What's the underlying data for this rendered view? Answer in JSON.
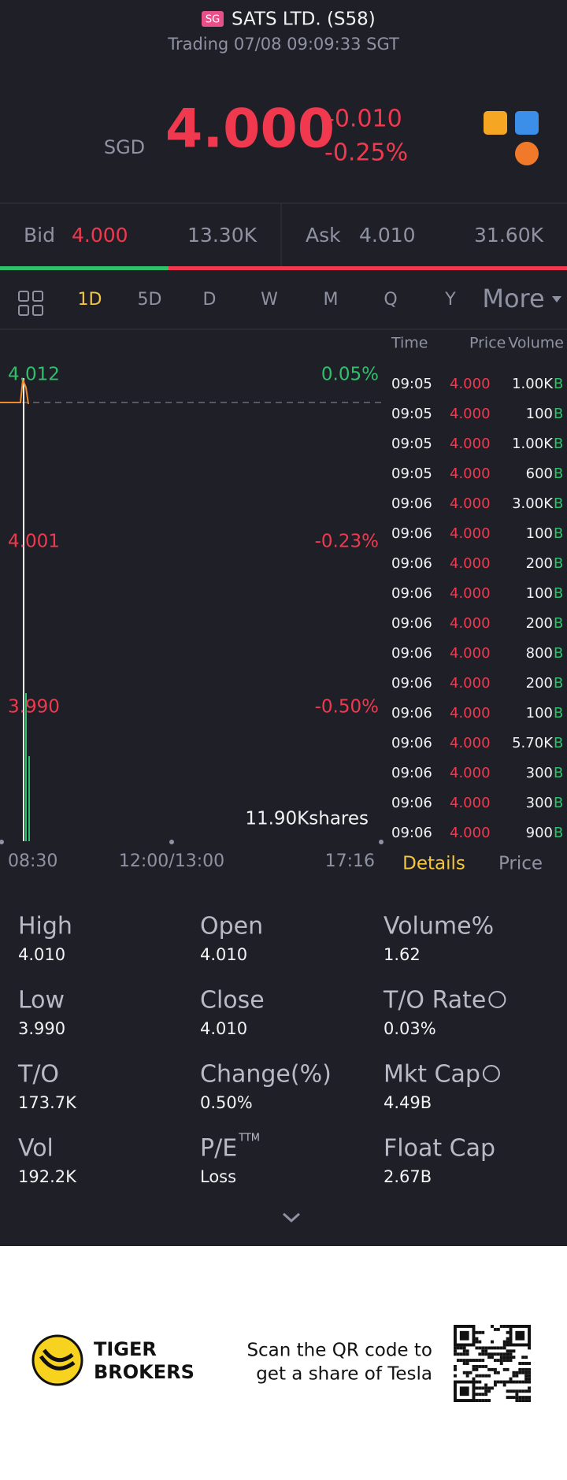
{
  "header": {
    "badge": "SG",
    "title": "SATS LTD. (S58)",
    "status": "Trading 07/08 09:09:33 SGT"
  },
  "quote": {
    "currency": "SGD",
    "price": "4.000",
    "change": "-0.010",
    "change_pct": "-0.25%"
  },
  "bid_ask": {
    "bid_label": "Bid",
    "bid_price": "4.000",
    "bid_volume": "13.30K",
    "ask_label": "Ask",
    "ask_price": "4.010",
    "ask_volume": "31.60K"
  },
  "tabs": [
    "1D",
    "5D",
    "D",
    "W",
    "M",
    "Q",
    "Y",
    "More"
  ],
  "chart": {
    "price_labels": [
      "4.012",
      "4.001",
      "3.990"
    ],
    "pct_labels": [
      "0.05%",
      "-0.23%",
      "-0.50%"
    ],
    "time_labels": [
      "08:30",
      "12:00/13:00",
      "17:16"
    ],
    "volume": "11.90Kshares"
  },
  "trades": {
    "headers": [
      "Time",
      "Price",
      "Volume"
    ],
    "rows": [
      [
        "09:05",
        "4.000",
        "1.00K",
        "B"
      ],
      [
        "09:05",
        "4.000",
        "100",
        "B"
      ],
      [
        "09:05",
        "4.000",
        "1.00K",
        "B"
      ],
      [
        "09:05",
        "4.000",
        "600",
        "B"
      ],
      [
        "09:06",
        "4.000",
        "3.00K",
        "B"
      ],
      [
        "09:06",
        "4.000",
        "100",
        "B"
      ],
      [
        "09:06",
        "4.000",
        "200",
        "B"
      ],
      [
        "09:06",
        "4.000",
        "100",
        "B"
      ],
      [
        "09:06",
        "4.000",
        "200",
        "B"
      ],
      [
        "09:06",
        "4.000",
        "800",
        "B"
      ],
      [
        "09:06",
        "4.000",
        "200",
        "B"
      ],
      [
        "09:06",
        "4.000",
        "100",
        "B"
      ],
      [
        "09:06",
        "4.000",
        "5.70K",
        "B"
      ],
      [
        "09:06",
        "4.000",
        "300",
        "B"
      ],
      [
        "09:06",
        "4.000",
        "300",
        "B"
      ],
      [
        "09:06",
        "4.000",
        "900",
        "B"
      ]
    ]
  },
  "trade_tabs": [
    "Details",
    "Price"
  ],
  "details": [
    {
      "label": "High",
      "value": "4.010"
    },
    {
      "label": "Open",
      "value": "4.010"
    },
    {
      "label": "Volume%",
      "value": "1.62"
    },
    {
      "label": "Low",
      "value": "3.990"
    },
    {
      "label": "Close",
      "value": "4.010"
    },
    {
      "label": "T/O Rate",
      "value": "0.03%"
    },
    {
      "label": "T/O",
      "value": "173.7K"
    },
    {
      "label": "Change(%)",
      "value": "0.50%"
    },
    {
      "label": "Mkt Cap",
      "value": "4.49B"
    },
    {
      "label": "Vol",
      "value": "192.2K"
    },
    {
      "label": "P/E",
      "superscript": "TTM",
      "value": "Loss"
    },
    {
      "label": "Float Cap",
      "value": "2.67B"
    }
  ],
  "footer": {
    "brand": [
      "TIGER",
      "BROKERS"
    ],
    "promo": [
      "Scan the QR code to",
      "get a share of Tesla"
    ]
  }
}
